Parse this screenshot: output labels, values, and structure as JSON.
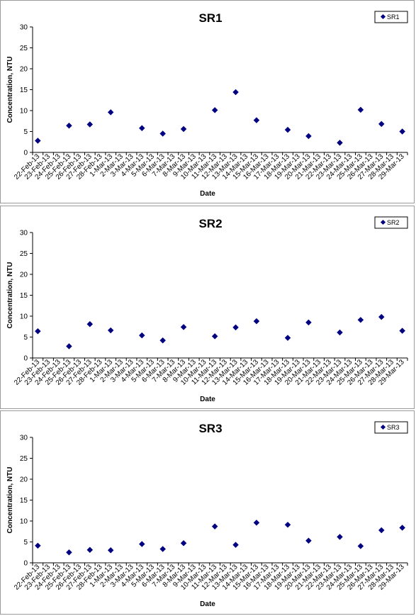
{
  "colors": {
    "marker": "#000080",
    "axis": "#000000",
    "border": "#9a9a9a"
  },
  "chart_data": [
    {
      "type": "scatter",
      "title": "SR1",
      "xlabel": "Date",
      "ylabel": "Concentration, NTU",
      "ylim": [
        0,
        30
      ],
      "yticks": [
        0,
        5,
        10,
        15,
        20,
        25,
        30
      ],
      "grid": false,
      "legend_position": "top-right",
      "categories": [
        "22-Feb-13",
        "23-Feb-13",
        "24-Feb-13",
        "25-Feb-13",
        "26-Feb-13",
        "27-Feb-13",
        "28-Feb-13",
        "1-Mar-13",
        "2-Mar-13",
        "3-Mar-13",
        "4-Mar-13",
        "5-Mar-13",
        "6-Mar-13",
        "7-Mar-13",
        "8-Mar-13",
        "9-Mar-13",
        "10-Mar-13",
        "11-Mar-13",
        "12-Mar-13",
        "13-Mar-13",
        "14-Mar-13",
        "15-Mar-13",
        "16-Mar-13",
        "17-Mar-13",
        "18-Mar-13",
        "19-Mar-13",
        "20-Mar-13",
        "21-Mar-13",
        "22-Mar-13",
        "23-Mar-13",
        "24-Mar-13",
        "25-Mar-13",
        "26-Mar-13",
        "27-Mar-13",
        "28-Mar-13",
        "29-Mar-13"
      ],
      "series": [
        {
          "name": "SR1",
          "points": [
            {
              "x": "22-Feb-13",
              "y": 2.8
            },
            {
              "x": "25-Feb-13",
              "y": 6.4
            },
            {
              "x": "27-Feb-13",
              "y": 6.7
            },
            {
              "x": "1-Mar-13",
              "y": 9.6
            },
            {
              "x": "4-Mar-13",
              "y": 5.8
            },
            {
              "x": "6-Mar-13",
              "y": 4.5
            },
            {
              "x": "8-Mar-13",
              "y": 5.6
            },
            {
              "x": "11-Mar-13",
              "y": 10.1
            },
            {
              "x": "13-Mar-13",
              "y": 14.4
            },
            {
              "x": "15-Mar-13",
              "y": 7.7
            },
            {
              "x": "18-Mar-13",
              "y": 5.4
            },
            {
              "x": "20-Mar-13",
              "y": 3.9
            },
            {
              "x": "23-Mar-13",
              "y": 2.3
            },
            {
              "x": "25-Mar-13",
              "y": 10.2
            },
            {
              "x": "27-Mar-13",
              "y": 6.8
            },
            {
              "x": "29-Mar-13",
              "y": 5.0
            }
          ]
        }
      ]
    },
    {
      "type": "scatter",
      "title": "SR2",
      "xlabel": "Date",
      "ylabel": "Concentration, NTU",
      "ylim": [
        0,
        30
      ],
      "yticks": [
        0,
        5,
        10,
        15,
        20,
        25,
        30
      ],
      "grid": false,
      "legend_position": "top-right",
      "categories": [
        "22-Feb-13",
        "23-Feb-13",
        "24-Feb-13",
        "25-Feb-13",
        "26-Feb-13",
        "27-Feb-13",
        "28-Feb-13",
        "1-Mar-13",
        "2-Mar-13",
        "3-Mar-13",
        "4-Mar-13",
        "5-Mar-13",
        "6-Mar-13",
        "7-Mar-13",
        "8-Mar-13",
        "9-Mar-13",
        "10-Mar-13",
        "11-Mar-13",
        "12-Mar-13",
        "13-Mar-13",
        "14-Mar-13",
        "15-Mar-13",
        "16-Mar-13",
        "17-Mar-13",
        "18-Mar-13",
        "19-Mar-13",
        "20-Mar-13",
        "21-Mar-13",
        "22-Mar-13",
        "23-Mar-13",
        "24-Mar-13",
        "25-Mar-13",
        "26-Mar-13",
        "27-Mar-13",
        "28-Mar-13",
        "29-Mar-13"
      ],
      "series": [
        {
          "name": "SR2",
          "points": [
            {
              "x": "22-Feb-13",
              "y": 6.4
            },
            {
              "x": "25-Feb-13",
              "y": 2.8
            },
            {
              "x": "27-Feb-13",
              "y": 8.1
            },
            {
              "x": "1-Mar-13",
              "y": 6.6
            },
            {
              "x": "4-Mar-13",
              "y": 5.4
            },
            {
              "x": "6-Mar-13",
              "y": 4.2
            },
            {
              "x": "8-Mar-13",
              "y": 7.4
            },
            {
              "x": "11-Mar-13",
              "y": 5.2
            },
            {
              "x": "13-Mar-13",
              "y": 7.3
            },
            {
              "x": "15-Mar-13",
              "y": 8.8
            },
            {
              "x": "18-Mar-13",
              "y": 4.8
            },
            {
              "x": "20-Mar-13",
              "y": 8.5
            },
            {
              "x": "23-Mar-13",
              "y": 6.1
            },
            {
              "x": "25-Mar-13",
              "y": 9.1
            },
            {
              "x": "27-Mar-13",
              "y": 9.8
            },
            {
              "x": "29-Mar-13",
              "y": 6.5
            }
          ]
        }
      ]
    },
    {
      "type": "scatter",
      "title": "SR3",
      "xlabel": "Date",
      "ylabel": "Concentration, NTU",
      "ylim": [
        0,
        30
      ],
      "yticks": [
        0,
        5,
        10,
        15,
        20,
        25,
        30
      ],
      "grid": false,
      "legend_position": "top-right",
      "categories": [
        "22-Feb-13",
        "23-Feb-13",
        "24-Feb-13",
        "25-Feb-13",
        "26-Feb-13",
        "27-Feb-13",
        "28-Feb-13",
        "1-Mar-13",
        "2-Mar-13",
        "3-Mar-13",
        "4-Mar-13",
        "5-Mar-13",
        "6-Mar-13",
        "7-Mar-13",
        "8-Mar-13",
        "9-Mar-13",
        "10-Mar-13",
        "11-Mar-13",
        "12-Mar-13",
        "13-Mar-13",
        "14-Mar-13",
        "15-Mar-13",
        "16-Mar-13",
        "17-Mar-13",
        "18-Mar-13",
        "19-Mar-13",
        "20-Mar-13",
        "21-Mar-13",
        "22-Mar-13",
        "23-Mar-13",
        "24-Mar-13",
        "25-Mar-13",
        "26-Mar-13",
        "27-Mar-13",
        "28-Mar-13",
        "29-Mar-13"
      ],
      "series": [
        {
          "name": "SR3",
          "points": [
            {
              "x": "22-Feb-13",
              "y": 4.1
            },
            {
              "x": "25-Feb-13",
              "y": 2.5
            },
            {
              "x": "27-Feb-13",
              "y": 3.1
            },
            {
              "x": "1-Mar-13",
              "y": 3.0
            },
            {
              "x": "4-Mar-13",
              "y": 4.5
            },
            {
              "x": "6-Mar-13",
              "y": 3.3
            },
            {
              "x": "8-Mar-13",
              "y": 4.7
            },
            {
              "x": "11-Mar-13",
              "y": 8.7
            },
            {
              "x": "13-Mar-13",
              "y": 4.3
            },
            {
              "x": "15-Mar-13",
              "y": 9.6
            },
            {
              "x": "18-Mar-13",
              "y": 9.1
            },
            {
              "x": "20-Mar-13",
              "y": 5.3
            },
            {
              "x": "23-Mar-13",
              "y": 6.2
            },
            {
              "x": "25-Mar-13",
              "y": 4.0
            },
            {
              "x": "27-Mar-13",
              "y": 7.8
            },
            {
              "x": "29-Mar-13",
              "y": 8.4
            }
          ]
        }
      ]
    }
  ]
}
